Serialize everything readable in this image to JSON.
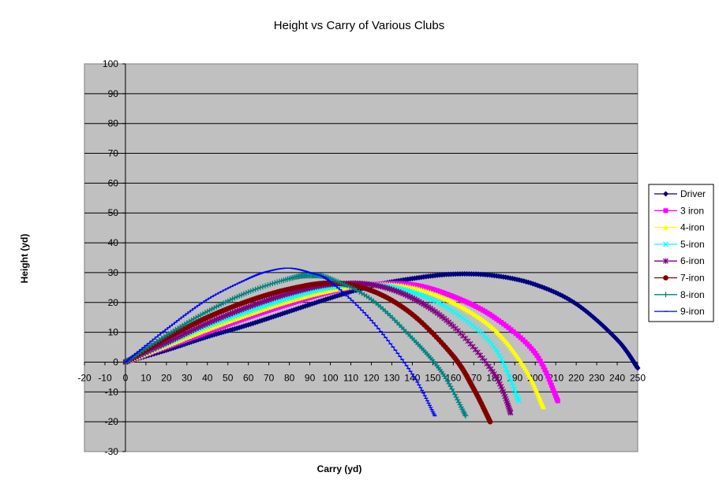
{
  "chart_data": {
    "type": "scatter",
    "title": "Height vs Carry of Various Clubs",
    "xlabel": "Carry (yd)",
    "ylabel": "Height (yd)",
    "xlim": [
      -20,
      250
    ],
    "ylim": [
      -30,
      100
    ],
    "x_ticks": [
      -20,
      -10,
      0,
      10,
      20,
      30,
      40,
      50,
      60,
      70,
      80,
      90,
      100,
      110,
      120,
      130,
      140,
      150,
      160,
      170,
      180,
      190,
      200,
      210,
      220,
      230,
      240,
      250
    ],
    "y_ticks": [
      -30,
      -20,
      -10,
      0,
      10,
      20,
      30,
      40,
      50,
      60,
      70,
      80,
      90,
      100
    ],
    "grid": "horizontal",
    "legend_position": "right",
    "plot_background": "#c0c0c0",
    "series": [
      {
        "name": "Driver",
        "color": "#000080",
        "marker": "diamond",
        "x": [
          0,
          20,
          40,
          60,
          80,
          100,
          120,
          140,
          160,
          180,
          200,
          220,
          240,
          250
        ],
        "y": [
          0,
          4,
          8.5,
          12.5,
          17,
          21.5,
          25.5,
          28,
          29.5,
          29,
          26,
          19.5,
          7.5,
          -2
        ]
      },
      {
        "name": "3 iron",
        "color": "#ff00ff",
        "marker": "square",
        "x": [
          0,
          20,
          40,
          60,
          80,
          100,
          120,
          140,
          160,
          180,
          200,
          211
        ],
        "y": [
          0,
          5,
          10,
          15,
          19.5,
          23.5,
          26,
          26,
          22,
          15,
          3,
          -13
        ]
      },
      {
        "name": "4-iron",
        "color": "#ffff00",
        "marker": "triangle",
        "x": [
          0,
          20,
          40,
          60,
          80,
          100,
          120,
          140,
          160,
          180,
          195,
          204
        ],
        "y": [
          0,
          5.5,
          11,
          16,
          20.5,
          24,
          26,
          25,
          20,
          11,
          -2,
          -15
        ]
      },
      {
        "name": "5-iron",
        "color": "#00ffff",
        "marker": "x",
        "x": [
          0,
          20,
          40,
          60,
          80,
          100,
          120,
          140,
          160,
          180,
          192
        ],
        "y": [
          0,
          6,
          12,
          17,
          21.5,
          25,
          26,
          23.5,
          17,
          5,
          -13
        ]
      },
      {
        "name": "6-iron",
        "color": "#800080",
        "marker": "star",
        "x": [
          0,
          20,
          40,
          60,
          80,
          100,
          120,
          140,
          160,
          180,
          188
        ],
        "y": [
          0,
          6.5,
          13,
          18.5,
          23,
          26,
          26,
          21.5,
          12,
          -4,
          -17
        ]
      },
      {
        "name": "7-iron",
        "color": "#800000",
        "marker": "circle",
        "x": [
          0,
          20,
          40,
          60,
          80,
          100,
          120,
          140,
          160,
          170,
          178
        ],
        "y": [
          0,
          8,
          15,
          20.5,
          24.5,
          26.5,
          24,
          16,
          2,
          -9,
          -20
        ]
      },
      {
        "name": "8-iron",
        "color": "#008080",
        "marker": "plus",
        "x": [
          0,
          20,
          40,
          60,
          80,
          90,
          100,
          120,
          140,
          155,
          166
        ],
        "y": [
          0,
          9,
          17,
          23.5,
          28,
          29,
          28,
          21,
          8,
          -4,
          -18
        ]
      },
      {
        "name": "9-iron",
        "color": "#0000ff",
        "marker": "dash",
        "x": [
          0,
          20,
          40,
          60,
          70,
          80,
          90,
          100,
          120,
          140,
          151
        ],
        "y": [
          0,
          11,
          21,
          28,
          30.5,
          31.5,
          30,
          27,
          14,
          -4,
          -18
        ]
      }
    ]
  }
}
